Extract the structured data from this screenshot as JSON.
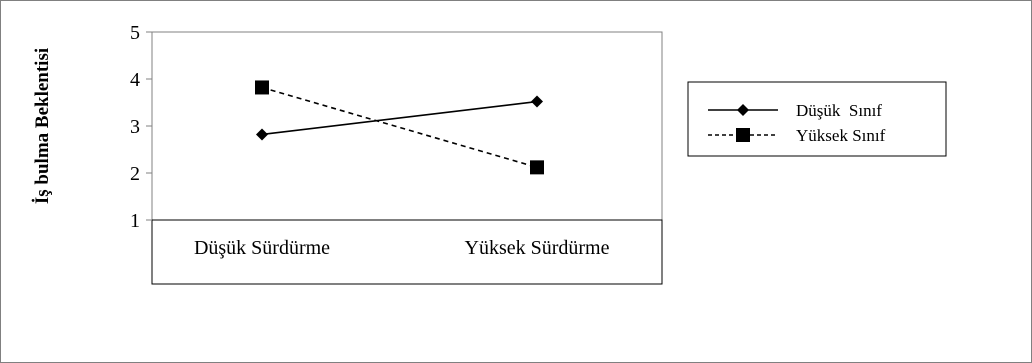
{
  "chart_data": {
    "type": "line",
    "title": "",
    "ylabel": "İş bulma Beklentisi",
    "xlabel": "",
    "categories": [
      "Düşük Sürdürme",
      "Yüksek Sürdürme"
    ],
    "ylim": [
      1,
      5
    ],
    "yticks": [
      "1",
      "2",
      "3",
      "4",
      "5"
    ],
    "grid": false,
    "legend_position": "right",
    "series": [
      {
        "name": "Düşük  Sınıf",
        "values": [
          2.82,
          3.52
        ],
        "line_style": "solid",
        "marker": "diamond",
        "color": "#000000"
      },
      {
        "name": "Yüksek Sınıf",
        "values": [
          3.82,
          2.12
        ],
        "line_style": "dashed",
        "marker": "square",
        "color": "#000000"
      }
    ]
  }
}
